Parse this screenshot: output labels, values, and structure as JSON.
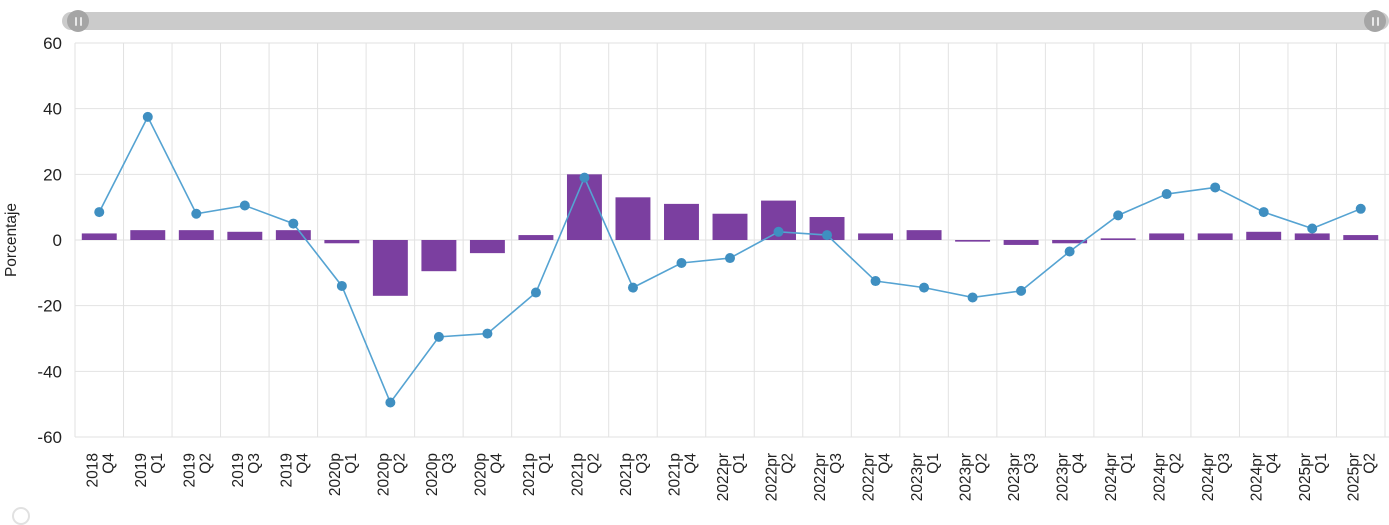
{
  "scrollbar": {
    "left_handle_icon": "drag-grip-icon",
    "right_handle_icon": "drag-grip-icon"
  },
  "watermark_icon": "partial-logo-icon",
  "chart_data": {
    "type": "combo",
    "title": "",
    "ylabel": "Porcentaje",
    "ylim": [
      -60,
      60
    ],
    "yticks": [
      60,
      40,
      20,
      0,
      -20,
      -40,
      -60
    ],
    "grid": true,
    "legend": "none",
    "categories": [
      "2018 Q4",
      "2019 Q1",
      "2019 Q2",
      "2019 Q3",
      "2019 Q4",
      "2020p Q1",
      "2020p Q2",
      "2020p Q3",
      "2020p Q4",
      "2021p Q1",
      "2021p Q2",
      "2021p Q3",
      "2021p Q4",
      "2022pr Q1",
      "2022pr Q2",
      "2022pr Q3",
      "2022pr Q4",
      "2023pr Q1",
      "2023pr Q2",
      "2023pr Q3",
      "2023pr Q4",
      "2024pr Q1",
      "2024pr Q2",
      "2024pr Q3",
      "2024pr Q4",
      "2025pr Q1",
      "2025pr Q2"
    ],
    "series": [
      {
        "name": "bars",
        "type": "bar",
        "color": "#7b3fa0",
        "values": [
          2,
          3,
          3,
          2.5,
          3,
          -1,
          -17,
          -9.5,
          -4,
          1.5,
          20,
          13,
          11,
          8,
          12,
          7,
          2,
          3,
          -0.5,
          -1.5,
          -1,
          0.5,
          2,
          2,
          2.5,
          2,
          1.5
        ]
      },
      {
        "name": "line",
        "type": "line",
        "color": "#55a3d2",
        "marker_color": "#3f8fc1",
        "values": [
          8.5,
          37.5,
          8,
          10.5,
          5,
          -14,
          -49.5,
          -29.5,
          -28.5,
          -16,
          19,
          -14.5,
          -7,
          -5.5,
          2.5,
          1.5,
          -12.5,
          -14.5,
          -17.5,
          -15.5,
          -3.5,
          7.5,
          14,
          16,
          8.5,
          3.5,
          9.5
        ]
      }
    ],
    "colors": {
      "grid": "#e2e2e2",
      "text": "#222222",
      "scrollbar_track": "#cbcbcb",
      "scrollbar_handle": "#a5a5a5"
    }
  }
}
